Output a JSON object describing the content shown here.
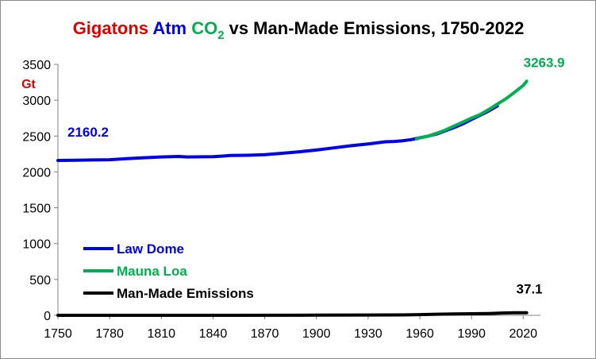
{
  "chart_data": {
    "type": "line",
    "title": {
      "part1": "Gigatons",
      "part2": "Atm",
      "part3_main": "CO",
      "part3_sub": "2",
      "part4": "vs Man-Made Emissions, 1750-2022"
    },
    "ylabel": "Gt",
    "xlim": [
      1750,
      2030
    ],
    "ylim": [
      0,
      3500
    ],
    "x_ticks": [
      1750,
      1780,
      1810,
      1840,
      1870,
      1900,
      1930,
      1960,
      1990,
      2020
    ],
    "y_ticks": [
      0,
      500,
      1000,
      1500,
      2000,
      2500,
      3000,
      3500
    ],
    "legend_position": "lower-left",
    "series": [
      {
        "name": "Law Dome",
        "color": "#0000e6",
        "points": [
          [
            1750,
            2160
          ],
          [
            1760,
            2162
          ],
          [
            1770,
            2166
          ],
          [
            1780,
            2170
          ],
          [
            1790,
            2185
          ],
          [
            1800,
            2198
          ],
          [
            1810,
            2208
          ],
          [
            1820,
            2215
          ],
          [
            1825,
            2208
          ],
          [
            1830,
            2210
          ],
          [
            1840,
            2212
          ],
          [
            1845,
            2220
          ],
          [
            1850,
            2228
          ],
          [
            1860,
            2232
          ],
          [
            1870,
            2240
          ],
          [
            1880,
            2260
          ],
          [
            1890,
            2280
          ],
          [
            1900,
            2305
          ],
          [
            1910,
            2335
          ],
          [
            1920,
            2365
          ],
          [
            1930,
            2390
          ],
          [
            1940,
            2420
          ],
          [
            1945,
            2425
          ],
          [
            1950,
            2435
          ],
          [
            1955,
            2450
          ],
          [
            1960,
            2475
          ],
          [
            1965,
            2500
          ],
          [
            1970,
            2530
          ],
          [
            1975,
            2575
          ],
          [
            1980,
            2620
          ],
          [
            1985,
            2670
          ],
          [
            1990,
            2730
          ],
          [
            1995,
            2790
          ],
          [
            2000,
            2850
          ],
          [
            2005,
            2920
          ]
        ]
      },
      {
        "name": "Mauna Loa",
        "color": "#00b050",
        "points": [
          [
            1958,
            2460
          ],
          [
            1960,
            2474
          ],
          [
            1965,
            2500
          ],
          [
            1970,
            2540
          ],
          [
            1975,
            2585
          ],
          [
            1980,
            2640
          ],
          [
            1985,
            2695
          ],
          [
            1990,
            2750
          ],
          [
            1995,
            2800
          ],
          [
            2000,
            2870
          ],
          [
            2005,
            2945
          ],
          [
            2010,
            3020
          ],
          [
            2015,
            3110
          ],
          [
            2020,
            3205
          ],
          [
            2022,
            3263.9
          ]
        ]
      },
      {
        "name": "Man-Made Emissions",
        "color": "#000000",
        "points": [
          [
            1750,
            0.01
          ],
          [
            1800,
            0.05
          ],
          [
            1850,
            0.2
          ],
          [
            1900,
            2
          ],
          [
            1930,
            4
          ],
          [
            1950,
            6
          ],
          [
            1960,
            10
          ],
          [
            1970,
            15
          ],
          [
            1980,
            19
          ],
          [
            1990,
            22
          ],
          [
            2000,
            25
          ],
          [
            2010,
            33
          ],
          [
            2015,
            35
          ],
          [
            2020,
            35
          ],
          [
            2022,
            37.1
          ]
        ]
      }
    ],
    "annotations": [
      {
        "text": "2160.2",
        "color": "#0000e6",
        "x": 1750,
        "y": 2160.2
      },
      {
        "text": "3263.9",
        "color": "#00b050",
        "x": 2022,
        "y": 3263.9
      },
      {
        "text": "37.1",
        "color": "#000000",
        "x": 2022,
        "y": 37.1
      }
    ]
  }
}
